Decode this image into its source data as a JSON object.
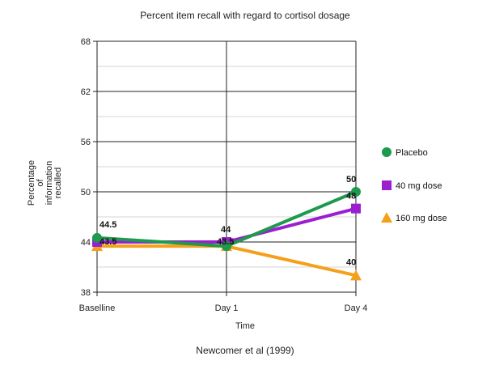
{
  "chart_data": {
    "type": "line",
    "title": "Percent item recall with regard to cortisol dosage",
    "xlabel": "Time",
    "ylabel": [
      "Percentage",
      "of",
      "information",
      "recalled"
    ],
    "categories": [
      "Baselline",
      "Day 1",
      "Day 4"
    ],
    "ylim": [
      38,
      68
    ],
    "yticks": [
      38,
      44,
      50,
      56,
      62,
      68
    ],
    "grid": true,
    "legend_position": "right",
    "series": [
      {
        "name": "Placebo",
        "values": [
          44.5,
          43.5,
          50
        ],
        "color": "#1e9a4e",
        "marker": "circle",
        "labels": [
          "44.5",
          "",
          "50"
        ]
      },
      {
        "name": "40 mg dose",
        "values": [
          44,
          44,
          48
        ],
        "color": "#9b1fd0",
        "marker": "square",
        "labels": [
          "",
          "44",
          "48"
        ]
      },
      {
        "name": "160 mg dose",
        "values": [
          43.5,
          43.5,
          40
        ],
        "color": "#f5a01a",
        "marker": "triangle",
        "labels": [
          "43.5",
          "43.5",
          "40"
        ]
      }
    ],
    "source": "Newcomer et al (1999)"
  }
}
